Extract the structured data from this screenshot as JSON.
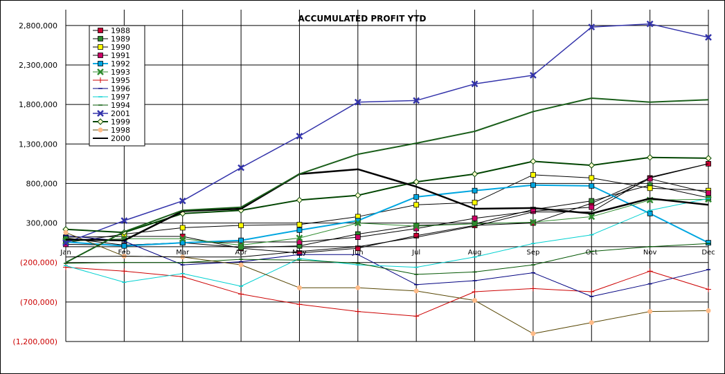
{
  "chart_data": {
    "type": "line",
    "title": "ACCUMULATED PROFIT YTD",
    "xlabel": "",
    "ylabel": "",
    "categories": [
      "Jan",
      "Feb",
      "Mar",
      "Apr",
      "May",
      "Jun",
      "Jul",
      "Aug",
      "Sep",
      "Oct",
      "Nov",
      "Dec"
    ],
    "ylim": [
      -1200000,
      3000000
    ],
    "yticks": [
      {
        "value": 2800000,
        "label": "2,800,000",
        "color": "#000000"
      },
      {
        "value": 2300000,
        "label": "2,300,000",
        "color": "#000000"
      },
      {
        "value": 1800000,
        "label": "1,800,000",
        "color": "#000000"
      },
      {
        "value": 1300000,
        "label": "1,300,000",
        "color": "#000000"
      },
      {
        "value": 800000,
        "label": "800,000",
        "color": "#000000"
      },
      {
        "value": 300000,
        "label": "300,000",
        "color": "#000000"
      },
      {
        "value": -200000,
        "label": "(200,000)",
        "color": "#cc0000"
      },
      {
        "value": -700000,
        "label": "(700,000)",
        "color": "#cc0000"
      },
      {
        "value": -1200000,
        "label": "(1,200,000)",
        "color": "#cc0000"
      }
    ],
    "grid": true,
    "legend_position": "top-left",
    "series": [
      {
        "name": "1988",
        "color": "#000000",
        "marker": "square",
        "marker_fill": "#cc0033",
        "width": 1,
        "values": [
          120000,
          130000,
          130000,
          -20000,
          -80000,
          -20000,
          140000,
          270000,
          300000,
          550000,
          870000,
          1050000
        ]
      },
      {
        "name": "1989",
        "color": "#000000",
        "marker": "square",
        "marker_fill": "#2e8b2e",
        "width": 1,
        "values": [
          110000,
          20000,
          50000,
          -10000,
          10000,
          160000,
          270000,
          290000,
          470000,
          580000,
          780000,
          620000
        ]
      },
      {
        "name": "1990",
        "color": "#000000",
        "marker": "square",
        "marker_fill": "#ffff00",
        "width": 1,
        "values": [
          50000,
          160000,
          240000,
          270000,
          280000,
          380000,
          530000,
          560000,
          910000,
          870000,
          740000,
          710000
        ]
      },
      {
        "name": "1991",
        "color": "#000000",
        "marker": "square",
        "marker_fill": "#cc0066",
        "width": 1,
        "values": [
          30000,
          20000,
          50000,
          60000,
          60000,
          120000,
          230000,
          360000,
          450000,
          500000,
          860000,
          680000
        ]
      },
      {
        "name": "1992",
        "color": "#00a6e0",
        "marker": "square",
        "marker_fill": "#00a6e0",
        "width": 2,
        "values": [
          60000,
          10000,
          50000,
          80000,
          210000,
          330000,
          630000,
          710000,
          780000,
          770000,
          420000,
          50000
        ]
      },
      {
        "name": "1993",
        "color": "#2e8b2e",
        "marker": "x",
        "marker_fill": "#2e8b2e",
        "width": 1,
        "values": [
          70000,
          100000,
          100000,
          20000,
          110000,
          300000,
          260000,
          290000,
          310000,
          380000,
          590000,
          600000
        ]
      },
      {
        "name": "1995",
        "color": "#cc0000",
        "marker": "plus",
        "marker_fill": "#cc0000",
        "width": 1,
        "values": [
          -260000,
          -310000,
          -380000,
          -600000,
          -730000,
          -820000,
          -880000,
          -570000,
          -530000,
          -570000,
          -310000,
          -540000
        ]
      },
      {
        "name": "1996",
        "color": "#000080",
        "marker": "dash",
        "marker_fill": "#000080",
        "width": 1,
        "values": [
          140000,
          70000,
          -230000,
          -190000,
          -100000,
          -100000,
          -480000,
          -430000,
          -330000,
          -630000,
          -470000,
          -290000
        ]
      },
      {
        "name": "1997",
        "color": "#00d0d0",
        "marker": "dash",
        "marker_fill": "#00d0d0",
        "width": 1,
        "values": [
          -240000,
          -450000,
          -340000,
          -500000,
          -150000,
          -230000,
          -260000,
          -130000,
          40000,
          150000,
          460000,
          610000
        ]
      },
      {
        "name": "1994",
        "color": "#005500",
        "marker": "dash",
        "marker_fill": "#005500",
        "width": 1,
        "values": [
          -210000,
          -200000,
          -200000,
          -160000,
          -170000,
          -210000,
          -350000,
          -320000,
          -230000,
          -60000,
          0,
          40000
        ]
      },
      {
        "name": "2001",
        "color": "#3333aa",
        "marker": "x",
        "marker_fill": "#3333aa",
        "width": 1.5,
        "values": [
          50000,
          330000,
          580000,
          1000000,
          1400000,
          1830000,
          1850000,
          2060000,
          2170000,
          2780000,
          2820000,
          2650000
        ]
      },
      {
        "name": "1999",
        "color": "#004400",
        "marker": "diamond",
        "marker_fill": "#ffffcc",
        "width": 2,
        "values": [
          220000,
          180000,
          420000,
          460000,
          590000,
          650000,
          820000,
          920000,
          1080000,
          1030000,
          1130000,
          1120000
        ]
      },
      {
        "name": "1998",
        "color": "#554400",
        "marker": "circle",
        "marker_fill": "#ffbb88",
        "width": 1,
        "values": [
          180000,
          -120000,
          -130000,
          -230000,
          -520000,
          -520000,
          -560000,
          -680000,
          -1100000,
          -960000,
          -820000,
          -810000
        ]
      },
      {
        "name": "2000",
        "color": "#000000",
        "marker": "none",
        "marker_fill": "#000000",
        "width": 2.5,
        "values": [
          90000,
          80000,
          450000,
          480000,
          920000,
          980000,
          760000,
          480000,
          490000,
          420000,
          610000,
          530000
        ]
      },
      {
        "name": "",
        "color": "#1a5e1a",
        "marker": "none",
        "marker_fill": "#1a5e1a",
        "width": 2,
        "values": [
          -200000,
          190000,
          460000,
          500000,
          920000,
          1170000,
          1310000,
          1460000,
          1710000,
          1880000,
          1830000,
          1860000
        ]
      },
      {
        "name": "",
        "color": "#000000",
        "marker": "none",
        "marker_fill": "#000000",
        "width": 1,
        "values": [
          -130000,
          -120000,
          -130000,
          -130000,
          -60000,
          0,
          120000,
          260000,
          440000,
          440000,
          880000,
          1050000
        ]
      }
    ]
  }
}
